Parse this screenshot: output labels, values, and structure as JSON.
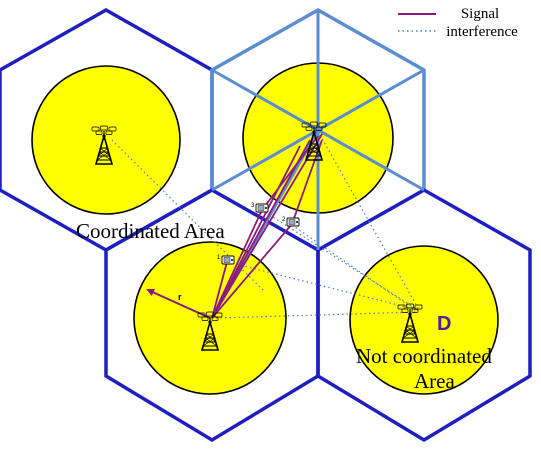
{
  "legend": {
    "signal_label": "Signal",
    "interference_label": "interference",
    "signal_color": "#8b1a7f",
    "interference_color": "#4f7fbf"
  },
  "labels": {
    "coordinated_area": "Coordinated Area",
    "not_coordinated_line1": "Not coordinated",
    "not_coordinated_line2": "Area",
    "desired_bs": "D",
    "radius": "r"
  },
  "user_equipment": [
    {
      "label": "3",
      "icon": "phone-icon"
    },
    {
      "label": "2",
      "icon": "phone-icon"
    },
    {
      "label": "1",
      "icon": "phone-icon"
    }
  ],
  "colors": {
    "hexagon_border": "#1f1fbf",
    "sector_border": "#5b8ed0",
    "cell_fill": "#ffff00",
    "cell_border": "#000000",
    "radius_arrow": "#8b1a7f",
    "desired_label": "#4b1fa0"
  }
}
